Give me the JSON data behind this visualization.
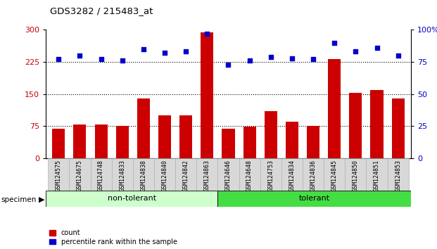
{
  "title": "GDS3282 / 215483_at",
  "samples": [
    "GSM124575",
    "GSM124675",
    "GSM124748",
    "GSM124833",
    "GSM124838",
    "GSM124840",
    "GSM124842",
    "GSM124863",
    "GSM124646",
    "GSM124648",
    "GSM124753",
    "GSM124834",
    "GSM124836",
    "GSM124845",
    "GSM124850",
    "GSM124851",
    "GSM124853"
  ],
  "counts": [
    68,
    78,
    78,
    75,
    140,
    100,
    100,
    295,
    68,
    73,
    110,
    85,
    75,
    232,
    152,
    160,
    140
  ],
  "percentile_ranks": [
    77,
    80,
    77,
    76,
    85,
    82,
    83,
    97,
    73,
    76,
    79,
    78,
    77,
    90,
    83,
    86,
    80
  ],
  "group_labels": [
    "non-tolerant",
    "tolerant"
  ],
  "non_tolerant_count": 8,
  "tolerant_count": 9,
  "bar_color": "#cc0000",
  "dot_color": "#0000cc",
  "non_tolerant_bg": "#ccffcc",
  "tolerant_bg": "#44dd44",
  "left_ylim": [
    0,
    300
  ],
  "right_ylim": [
    0,
    100
  ],
  "left_yticks": [
    0,
    75,
    150,
    225,
    300
  ],
  "right_yticks": [
    0,
    25,
    50,
    75,
    100
  ],
  "dotted_lines": [
    75,
    150,
    225
  ]
}
